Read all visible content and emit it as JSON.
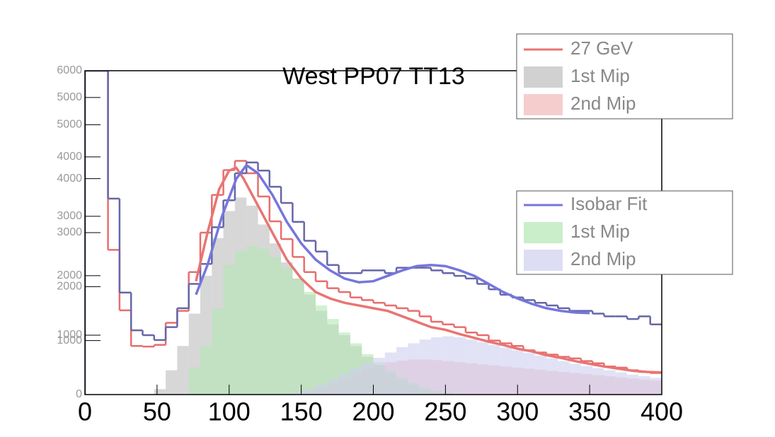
{
  "chart_data": {
    "type": "histogram",
    "title": "West PP07 TT13",
    "bins": [
      0,
      8,
      16,
      24,
      32,
      40,
      48,
      56,
      64,
      72,
      80,
      88,
      96,
      104,
      112,
      120,
      128,
      136,
      144,
      152,
      160,
      168,
      176,
      184,
      192,
      200,
      208,
      216,
      224,
      232,
      240,
      248,
      256,
      264,
      272,
      280,
      288,
      296,
      304,
      312,
      320,
      328,
      336,
      344,
      352,
      360,
      368,
      376,
      384,
      392,
      400
    ],
    "xlim": [
      0,
      400
    ],
    "xticks": [
      0,
      50,
      100,
      150,
      200,
      250,
      300,
      350,
      400
    ],
    "ylim": [
      0,
      6000
    ],
    "yticks": [
      0,
      1000,
      2000,
      3000,
      4000,
      5000,
      6000
    ],
    "y2lim": [
      0,
      5450
    ],
    "y2ticks": [
      1000,
      2000,
      3000,
      4000,
      5000
    ],
    "series": [
      {
        "name": "27 GeV",
        "color": "#e87572",
        "style": "line",
        "legend": 0,
        "x": [
          77,
          85,
          93,
          100,
          105,
          110,
          120,
          130,
          140,
          150,
          160,
          170,
          180,
          190,
          200,
          210,
          220,
          230,
          240,
          250,
          260,
          270,
          280,
          290,
          300,
          310,
          320,
          330,
          340,
          350,
          360,
          370,
          380,
          390,
          400
        ],
        "values": [
          2100,
          3000,
          3800,
          4150,
          4200,
          4000,
          3500,
          3000,
          2500,
          2150,
          1900,
          1780,
          1700,
          1650,
          1600,
          1550,
          1450,
          1350,
          1250,
          1200,
          1120,
          1050,
          980,
          920,
          850,
          800,
          730,
          680,
          620,
          570,
          520,
          480,
          440,
          420,
          410
        ]
      },
      {
        "name": "1st Mip",
        "color": "#bdbdbd",
        "style": "fill",
        "legend": 0,
        "values": [
          0,
          0,
          0,
          0,
          0,
          0,
          100,
          450,
          900,
          1500,
          2200,
          2900,
          3400,
          3650,
          3500,
          3150,
          2800,
          2450,
          2150,
          1850,
          1550,
          1300,
          1100,
          900,
          700,
          550,
          400,
          280,
          180,
          100,
          60,
          30,
          0,
          0,
          0,
          0,
          0,
          0,
          0,
          0,
          0,
          0,
          0,
          0,
          0,
          0,
          0,
          0,
          0,
          0
        ]
      },
      {
        "name": "2nd Mip",
        "color": "#f2b8b8",
        "style": "fill",
        "legend": 0,
        "values": [
          0,
          0,
          0,
          0,
          0,
          0,
          0,
          0,
          0,
          0,
          0,
          0,
          0,
          0,
          0,
          0,
          0,
          0,
          0,
          50,
          120,
          200,
          300,
          400,
          480,
          550,
          600,
          630,
          650,
          650,
          640,
          620,
          600,
          580,
          560,
          540,
          520,
          500,
          480,
          460,
          440,
          420,
          400,
          380,
          360,
          340,
          320,
          300,
          280,
          260
        ]
      },
      {
        "name": "Isobar Fit",
        "color": "#7676dc",
        "style": "line",
        "legend": 1,
        "x": [
          77,
          85,
          95,
          105,
          112,
          120,
          130,
          140,
          150,
          160,
          170,
          180,
          190,
          200,
          210,
          220,
          230,
          240,
          250,
          260,
          270,
          280,
          290,
          300,
          310,
          320,
          330,
          340,
          350
        ],
        "values": [
          1850,
          2400,
          3300,
          4000,
          4250,
          4100,
          3700,
          3200,
          2800,
          2500,
          2300,
          2150,
          2080,
          2100,
          2200,
          2300,
          2380,
          2400,
          2380,
          2300,
          2200,
          2050,
          1900,
          1780,
          1680,
          1600,
          1550,
          1520,
          1510
        ]
      },
      {
        "name": "1st Mip",
        "color": "#b4e6b4",
        "style": "fill",
        "legend": 1,
        "values": [
          0,
          0,
          0,
          0,
          0,
          0,
          0,
          0,
          0,
          500,
          900,
          1600,
          2400,
          2650,
          2750,
          2700,
          2550,
          2350,
          2150,
          1900,
          1650,
          1400,
          1150,
          950,
          750,
          600,
          450,
          320,
          220,
          140,
          80,
          40,
          0,
          0,
          0,
          0,
          0,
          0,
          0,
          0,
          0,
          0,
          0,
          0,
          0,
          0,
          0,
          0,
          0,
          0
        ]
      },
      {
        "name": "2nd Mip",
        "color": "#cfcff0",
        "style": "fill",
        "legend": 1,
        "values": [
          0,
          0,
          0,
          0,
          0,
          0,
          0,
          0,
          0,
          0,
          0,
          0,
          0,
          0,
          0,
          0,
          0,
          0,
          50,
          100,
          180,
          280,
          380,
          480,
          580,
          680,
          780,
          880,
          950,
          1020,
          1060,
          1080,
          1060,
          1020,
          970,
          920,
          870,
          820,
          770,
          720,
          670,
          620,
          570,
          530,
          490,
          450,
          410,
          370,
          340,
          310
        ]
      },
      {
        "color": "#e86d6d",
        "style": "step",
        "values": [
          6000,
          6000,
          2680,
          1560,
          900,
          890,
          920,
          1330,
          1550,
          2270,
          3000,
          3700,
          4160,
          4330,
          4100,
          3670,
          3210,
          2880,
          2550,
          2270,
          2100,
          1970,
          1900,
          1800,
          1750,
          1700,
          1650,
          1600,
          1550,
          1450,
          1350,
          1300,
          1250,
          1150,
          1100,
          1000,
          950,
          900,
          820,
          780,
          740,
          700,
          670,
          620,
          580,
          520,
          500,
          450,
          420,
          400
        ]
      },
      {
        "color": "#6666aa",
        "style": "step",
        "values": [
          6000,
          6000,
          3630,
          1890,
          1190,
          1100,
          1010,
          1250,
          1600,
          2050,
          2420,
          3100,
          3600,
          4100,
          4300,
          4150,
          3850,
          3550,
          3200,
          2850,
          2650,
          2400,
          2250,
          2250,
          2300,
          2300,
          2250,
          2350,
          2350,
          2350,
          2300,
          2250,
          2200,
          2150,
          2050,
          1950,
          1850,
          1800,
          1750,
          1700,
          1650,
          1600,
          1550,
          1550,
          1500,
          1450,
          1450,
          1400,
          1450,
          1300
        ]
      }
    ]
  }
}
